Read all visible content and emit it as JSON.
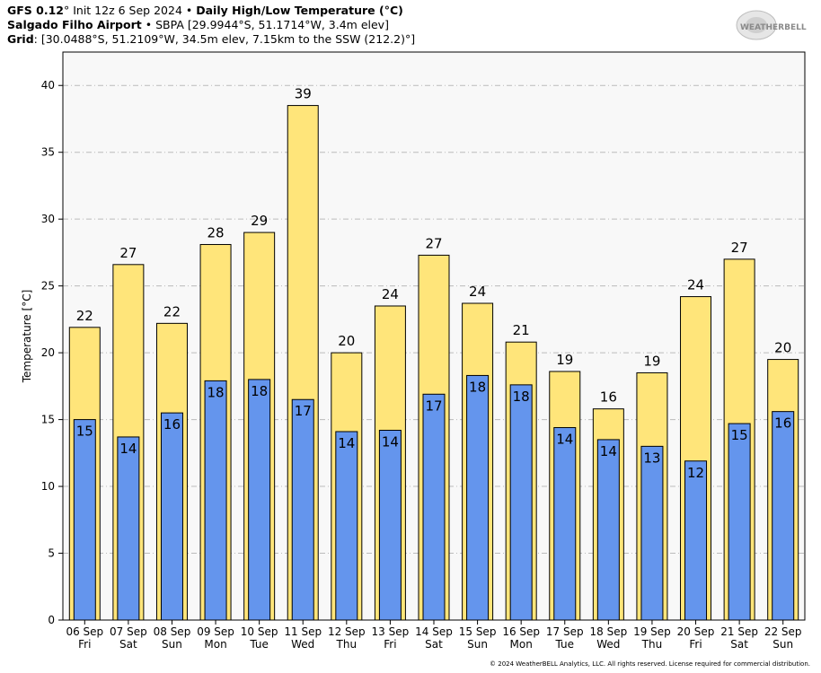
{
  "header": {
    "model": "GFS 0.12",
    "init": "° Init 12z 6 Sep 2024",
    "sep": " • ",
    "product": "Daily High/Low Temperature (°C)",
    "station_name": "Salgado Filho Airport",
    "station_info": " • SBPA [29.9944°S, 51.1714°W, 3.4m elev]",
    "grid_label": "Grid",
    "grid_info": ": [30.0488°S, 51.2109°W, 34.5m elev, 7.15km to the SSW (212.2)°]"
  },
  "logo": {
    "text": "WEATHERBELL"
  },
  "copyright": "© 2024 WeatherBELL Analytics, LLC. All rights reserved. License required for commercial distribution.",
  "colors": {
    "high": "#FFE57A",
    "low": "#6495ED",
    "plot_bg": "#F8F8F8",
    "grid": "#BBBBBB"
  },
  "chart_data": {
    "type": "bar",
    "ylabel": "Temperature [°C]",
    "ylim": [
      0,
      42.5
    ],
    "yticks": [
      0,
      5,
      10,
      15,
      20,
      25,
      30,
      35,
      40
    ],
    "grid": true,
    "categories": [
      [
        "06 Sep",
        "Fri"
      ],
      [
        "07 Sep",
        "Sat"
      ],
      [
        "08 Sep",
        "Sun"
      ],
      [
        "09 Sep",
        "Mon"
      ],
      [
        "10 Sep",
        "Tue"
      ],
      [
        "11 Sep",
        "Wed"
      ],
      [
        "12 Sep",
        "Thu"
      ],
      [
        "13 Sep",
        "Fri"
      ],
      [
        "14 Sep",
        "Sat"
      ],
      [
        "15 Sep",
        "Sun"
      ],
      [
        "16 Sep",
        "Mon"
      ],
      [
        "17 Sep",
        "Tue"
      ],
      [
        "18 Sep",
        "Wed"
      ],
      [
        "19 Sep",
        "Thu"
      ],
      [
        "20 Sep",
        "Fri"
      ],
      [
        "21 Sep",
        "Sat"
      ],
      [
        "22 Sep",
        "Sun"
      ]
    ],
    "series": [
      {
        "key": "high",
        "values": [
          21.9,
          26.6,
          22.2,
          28.1,
          29.0,
          38.5,
          20.0,
          23.5,
          27.3,
          23.7,
          20.8,
          18.6,
          15.8,
          18.5,
          24.2,
          27.0,
          19.5
        ],
        "labels": [
          22,
          27,
          22,
          28,
          29,
          39,
          20,
          24,
          27,
          24,
          21,
          19,
          16,
          19,
          24,
          27,
          20
        ]
      },
      {
        "key": "low",
        "values": [
          15.0,
          13.7,
          15.5,
          17.9,
          18.0,
          16.5,
          14.1,
          14.2,
          16.9,
          18.3,
          17.6,
          14.4,
          13.5,
          13.0,
          11.9,
          14.7,
          15.6
        ],
        "labels": [
          15,
          14,
          16,
          18,
          18,
          17,
          14,
          14,
          17,
          18,
          18,
          14,
          14,
          13,
          12,
          15,
          16
        ]
      }
    ]
  }
}
